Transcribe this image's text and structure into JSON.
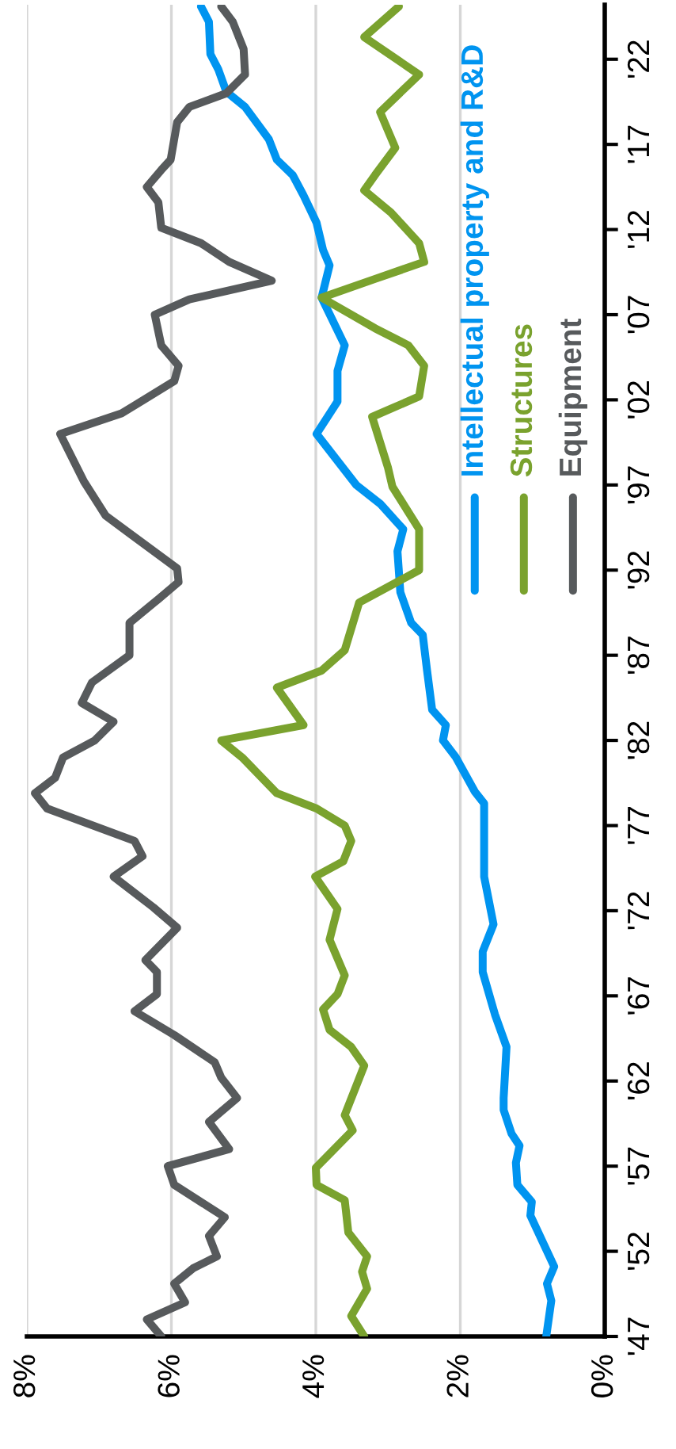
{
  "chart_data": {
    "type": "line",
    "orientation": "horizontal",
    "ylim": [
      1947,
      2025.2
    ],
    "yticks": [
      {
        "value": 1947,
        "label": "'47"
      },
      {
        "value": 1952,
        "label": "'52"
      },
      {
        "value": 1957,
        "label": "'57"
      },
      {
        "value": 1962,
        "label": "'62"
      },
      {
        "value": 1967,
        "label": "'67"
      },
      {
        "value": 1972,
        "label": "'72"
      },
      {
        "value": 1977,
        "label": "'77"
      },
      {
        "value": 1982,
        "label": "'82"
      },
      {
        "value": 1987,
        "label": "'87"
      },
      {
        "value": 1992,
        "label": "'92"
      },
      {
        "value": 1997,
        "label": "'97"
      },
      {
        "value": 2002,
        "label": "'02"
      },
      {
        "value": 2007,
        "label": "'07"
      },
      {
        "value": 2012,
        "label": "'12"
      },
      {
        "value": 2017,
        "label": "'17"
      },
      {
        "value": 2022,
        "label": "'22"
      }
    ],
    "xlim": [
      8,
      0
    ],
    "xticks": [
      {
        "value": 0,
        "label": "0%"
      },
      {
        "value": 2,
        "label": "2%"
      },
      {
        "value": 4,
        "label": "4%"
      },
      {
        "value": 6,
        "label": "6%"
      },
      {
        "value": 8,
        "label": "8%"
      }
    ],
    "grid": "x",
    "legend": "right",
    "marker": "none",
    "line_style": "solid",
    "series": [
      {
        "name": "Intellectual property and R&D",
        "color": "#0094f0",
        "x": [
          1947,
          1949.1,
          1950.1,
          1951.1,
          1954.1,
          1954.9,
          1955.9,
          1957.2,
          1958.2,
          1958.9,
          1960.3,
          1961,
          1964,
          1965.9,
          1968.4,
          1969.6,
          1971.2,
          1974,
          1978.3,
          1979,
          1981,
          1982,
          1982.9,
          1983.8,
          1986.1,
          1988.2,
          1988.9,
          1990.7,
          1993.1,
          1994.4,
          1995.9,
          1997,
          2000,
          2001.9,
          2003.7,
          2005.2,
          2008,
          2009.9,
          2010.8,
          2012.4,
          2014,
          2015.2,
          2016.1,
          2017.3,
          2019.2,
          2020.1,
          2021.4,
          2022.3,
          2024.2,
          2025.1
        ],
        "values": [
          0.81,
          0.74,
          0.8,
          0.7,
          1.03,
          1.01,
          1.21,
          1.23,
          1.18,
          1.29,
          1.4,
          1.4,
          1.36,
          1.52,
          1.69,
          1.69,
          1.54,
          1.67,
          1.67,
          1.8,
          2.06,
          2.24,
          2.2,
          2.39,
          2.46,
          2.52,
          2.68,
          2.83,
          2.87,
          2.79,
          3.11,
          3.44,
          3.99,
          3.7,
          3.7,
          3.6,
          3.92,
          3.81,
          3.9,
          3.99,
          4.17,
          4.32,
          4.54,
          4.65,
          4.98,
          5.24,
          5.35,
          5.46,
          5.48,
          5.59
        ]
      },
      {
        "name": "Structures",
        "color": "#7aa22e",
        "x": [
          1947,
          1948.2,
          1949.8,
          1950.8,
          1951.7,
          1953.1,
          1955,
          1955.9,
          1956.9,
          1958.2,
          1959.1,
          1960,
          1962.9,
          1964,
          1965,
          1966.2,
          1967.1,
          1968.2,
          1970.3,
          1972.1,
          1974,
          1974.9,
          1976.1,
          1977,
          1978,
          1978.9,
          1981,
          1982,
          1982.9,
          1985.1,
          1986.1,
          1987.3,
          1990.1,
          1992,
          1994.4,
          1996.9,
          1998,
          2001,
          2002.2,
          2004,
          2005.2,
          2006.2,
          2008,
          2009.1,
          2010.1,
          2011.2,
          2013,
          2014.3,
          2015.2,
          2016.8,
          2018.9,
          2021.1,
          2023.3,
          2025.1
        ],
        "values": [
          3.33,
          3.51,
          3.29,
          3.36,
          3.29,
          3.55,
          3.6,
          3.99,
          4.0,
          3.7,
          3.49,
          3.6,
          3.33,
          3.51,
          3.81,
          3.9,
          3.7,
          3.6,
          3.81,
          3.7,
          4.01,
          3.62,
          3.51,
          3.6,
          3.99,
          4.54,
          5.02,
          5.31,
          4.17,
          4.54,
          3.92,
          3.6,
          3.4,
          2.57,
          2.57,
          2.94,
          3.0,
          3.22,
          2.57,
          2.5,
          2.72,
          3.18,
          3.92,
          3.18,
          2.5,
          2.57,
          2.96,
          3.33,
          3.18,
          2.9,
          3.11,
          2.57,
          3.33,
          2.85
        ]
      },
      {
        "name": "Equipment",
        "color": "#575a5c",
        "x": [
          1947,
          1948,
          1949,
          1950.1,
          1951,
          1951.7,
          1952.9,
          1954,
          1955.9,
          1957,
          1958,
          1959.6,
          1961,
          1962.2,
          1963.1,
          1964.7,
          1966.1,
          1967.1,
          1968.4,
          1969.1,
          1971,
          1972.2,
          1974,
          1975.2,
          1976.1,
          1978,
          1978.9,
          1979.8,
          1981,
          1982,
          1983.1,
          1984.2,
          1985.4,
          1987,
          1988.9,
          1990.3,
          1991.3,
          1992.1,
          1994.1,
          1995.2,
          1997.2,
          2000,
          2001.2,
          2003.1,
          2004,
          2005.2,
          2007,
          2007.9,
          2009,
          2010.1,
          2011.2,
          2012.1,
          2013.6,
          2014.5,
          2015.5,
          2016.1,
          2018.3,
          2019.2,
          2020,
          2021.1,
          2022.6,
          2024.2,
          2025.1
        ],
        "values": [
          6.14,
          6.34,
          5.81,
          5.96,
          5.7,
          5.37,
          5.48,
          5.26,
          5.96,
          6.05,
          5.2,
          5.48,
          5.09,
          5.31,
          5.4,
          5.96,
          6.51,
          6.2,
          6.2,
          6.36,
          5.92,
          6.25,
          6.8,
          6.4,
          6.51,
          7.72,
          7.89,
          7.61,
          7.5,
          7.06,
          6.8,
          7.24,
          7.1,
          6.58,
          6.58,
          6.18,
          5.9,
          5.92,
          6.56,
          6.91,
          7.21,
          7.54,
          6.69,
          5.96,
          5.9,
          6.14,
          6.23,
          5.75,
          4.61,
          5.2,
          5.59,
          6.14,
          6.18,
          6.34,
          6.14,
          6.01,
          5.92,
          5.75,
          5.24,
          4.98,
          5.0,
          5.15,
          5.31
        ]
      }
    ]
  }
}
